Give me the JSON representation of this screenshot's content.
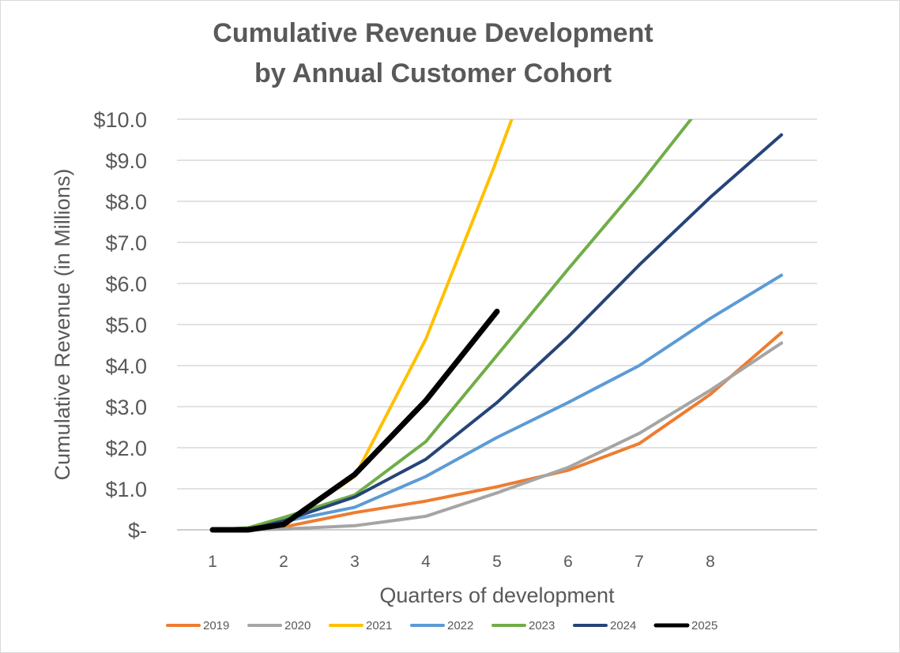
{
  "chart_data": {
    "type": "line",
    "title_lines": [
      "Cumulative Revenue Development",
      "by Annual Customer Cohort"
    ],
    "xlabel": "Quarters of development",
    "ylabel": "Cumulative Revenue (in Millions)",
    "ylim": [
      0,
      10
    ],
    "xlim": [
      0.5,
      9.5
    ],
    "y_ticks": [
      0,
      1,
      2,
      3,
      4,
      5,
      6,
      7,
      8,
      9,
      10
    ],
    "y_tick_labels": [
      "$-",
      "$1.0",
      "$2.0",
      "$3.0",
      "$4.0",
      "$5.0",
      "$6.0",
      "$7.0",
      "$8.0",
      "$9.0",
      "$10.0"
    ],
    "x_tick_labels": [
      "1",
      "2",
      "3",
      "4",
      "5",
      "6",
      "7",
      "8"
    ],
    "grid": true,
    "legend_position": "bottom",
    "series": [
      {
        "name": "2019",
        "color": "#ED7D31",
        "width": 4,
        "points": [
          [
            1,
            0
          ],
          [
            1.5,
            0
          ],
          [
            2,
            0.07
          ],
          [
            3,
            0.42
          ],
          [
            4,
            0.7
          ],
          [
            5,
            1.05
          ],
          [
            6,
            1.45
          ],
          [
            7,
            2.1
          ],
          [
            8,
            3.3
          ],
          [
            9,
            4.8
          ]
        ]
      },
      {
        "name": "2020",
        "color": "#A5A5A5",
        "width": 4,
        "points": [
          [
            1,
            0
          ],
          [
            1.5,
            0
          ],
          [
            2,
            0.02
          ],
          [
            3,
            0.1
          ],
          [
            4,
            0.33
          ],
          [
            5,
            0.9
          ],
          [
            6,
            1.52
          ],
          [
            7,
            2.35
          ],
          [
            8,
            3.4
          ],
          [
            9,
            4.55
          ]
        ]
      },
      {
        "name": "2021",
        "color": "#FFC000",
        "width": 4,
        "points": [
          [
            1,
            0
          ],
          [
            1.5,
            0
          ],
          [
            2,
            0.12
          ],
          [
            3,
            1.3
          ],
          [
            4,
            4.65
          ],
          [
            4.95,
            8.8
          ],
          [
            5.25,
            10.2
          ]
        ]
      },
      {
        "name": "2022",
        "color": "#5B9BD5",
        "width": 4,
        "points": [
          [
            1,
            0
          ],
          [
            1.5,
            0
          ],
          [
            2,
            0.2
          ],
          [
            3,
            0.55
          ],
          [
            4,
            1.3
          ],
          [
            5,
            2.25
          ],
          [
            6,
            3.1
          ],
          [
            7,
            4.0
          ],
          [
            8,
            5.15
          ],
          [
            9,
            6.2
          ]
        ]
      },
      {
        "name": "2023",
        "color": "#70AD47",
        "width": 4,
        "points": [
          [
            1,
            0
          ],
          [
            1.5,
            0.05
          ],
          [
            2,
            0.3
          ],
          [
            3,
            0.85
          ],
          [
            4,
            2.15
          ],
          [
            5,
            4.25
          ],
          [
            6,
            6.35
          ],
          [
            7,
            8.4
          ],
          [
            7.75,
            10.05
          ]
        ]
      },
      {
        "name": "2024",
        "color": "#264478",
        "width": 4,
        "points": [
          [
            1,
            0
          ],
          [
            1.5,
            0
          ],
          [
            2,
            0.22
          ],
          [
            3,
            0.8
          ],
          [
            4,
            1.72
          ],
          [
            5,
            3.1
          ],
          [
            6,
            4.7
          ],
          [
            7,
            6.45
          ],
          [
            8,
            8.1
          ],
          [
            9,
            9.62
          ]
        ]
      },
      {
        "name": "2025",
        "color": "#000000",
        "width": 7,
        "points": [
          [
            1,
            0
          ],
          [
            1.5,
            0
          ],
          [
            2,
            0.13
          ],
          [
            3,
            1.35
          ],
          [
            4,
            3.15
          ],
          [
            5,
            5.32
          ]
        ]
      }
    ]
  }
}
